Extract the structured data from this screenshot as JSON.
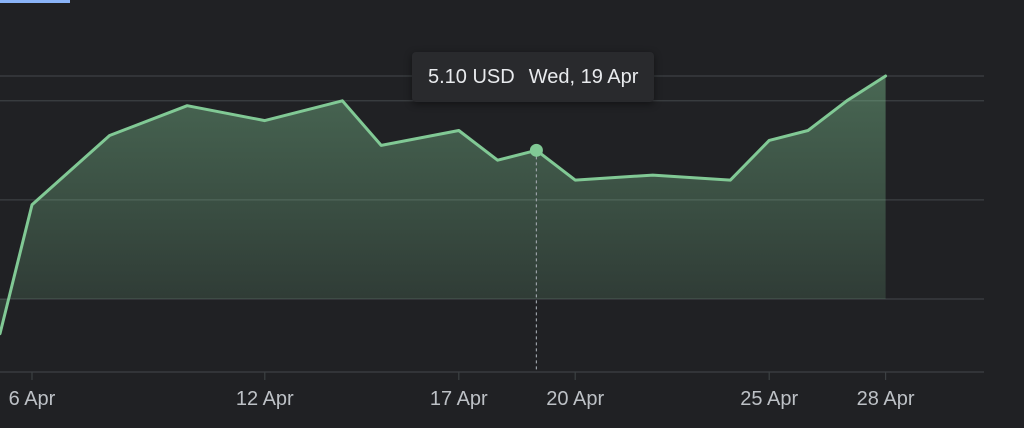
{
  "chart_data": {
    "type": "area",
    "x_ticks": [
      "6 Apr",
      "12 Apr",
      "17 Apr",
      "20 Apr",
      "25 Apr",
      "28 Apr"
    ],
    "x_domain": [
      "5 Apr",
      "28 Apr"
    ],
    "ylim": [
      4.6,
      5.3
    ],
    "y_gridlines": [
      4.8,
      5.0,
      5.2
    ],
    "grid": true,
    "series": [
      {
        "x": [
          "5 Apr",
          "6 Apr",
          "8 Apr",
          "10 Apr",
          "12 Apr",
          "14 Apr",
          "15 Apr",
          "17 Apr",
          "18 Apr",
          "19 Apr",
          "20 Apr",
          "22 Apr",
          "24 Apr",
          "25 Apr",
          "26 Apr",
          "27 Apr",
          "28 Apr"
        ],
        "values": [
          4.73,
          4.99,
          5.13,
          5.19,
          5.16,
          5.2,
          5.11,
          5.14,
          5.08,
          5.1,
          5.04,
          5.05,
          5.04,
          5.12,
          5.14,
          5.2,
          5.25
        ],
        "color": "#81c995"
      }
    ],
    "highlight": {
      "x": "19 Apr",
      "value": 5.1
    }
  },
  "tooltip": {
    "value": "5.10 USD",
    "date": "Wed, 19 Apr"
  },
  "colors": {
    "background": "#202124",
    "line": "#81c995",
    "grid": "#3c4043",
    "tick_text": "#bdc1c6",
    "accent": "#8ab4f8"
  }
}
